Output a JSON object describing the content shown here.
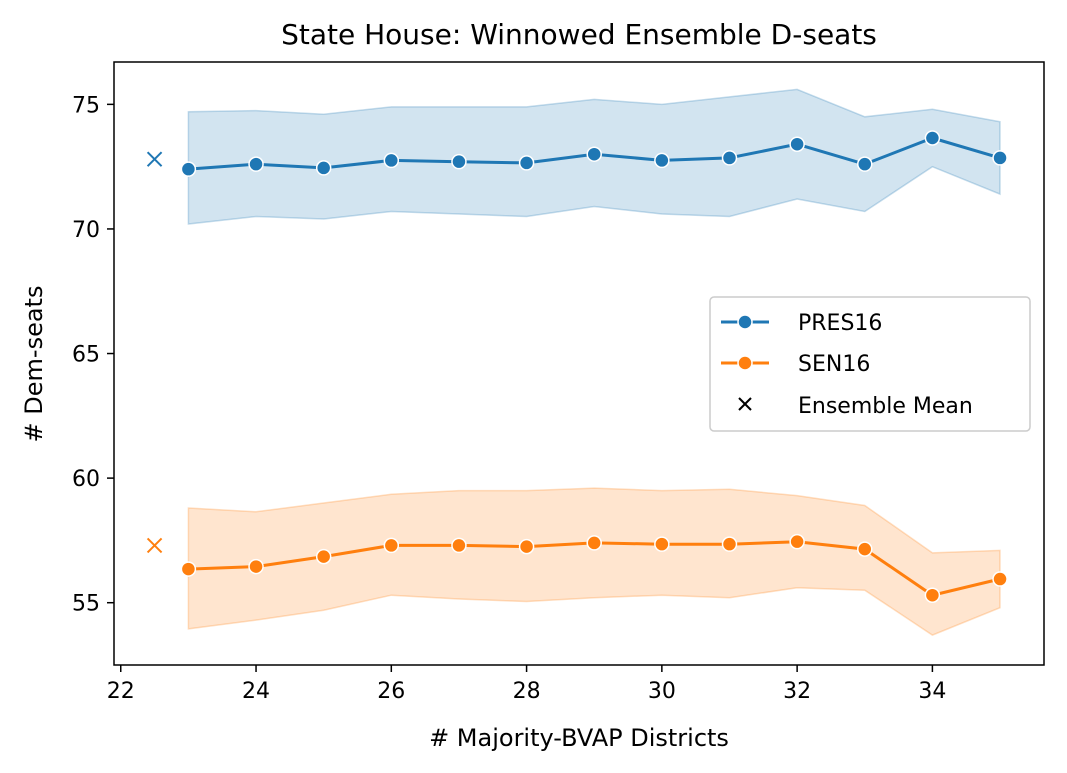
{
  "chart_data": {
    "type": "line",
    "title": "State House: Winnowed Ensemble D-seats",
    "xlabel": "# Majority-BVAP Districts",
    "ylabel": "# Dem-seats",
    "xlim": [
      21.9,
      35.65
    ],
    "ylim": [
      52.5,
      76.7
    ],
    "xticks": [
      22,
      24,
      26,
      28,
      30,
      32,
      34
    ],
    "yticks": [
      55,
      60,
      65,
      70,
      75
    ],
    "grid": false,
    "legend_position": "center-right",
    "x": [
      23,
      24,
      25,
      26,
      27,
      28,
      29,
      30,
      31,
      32,
      33,
      34,
      35
    ],
    "series": [
      {
        "name": "PRES16",
        "color": "#1f77b4",
        "values": [
          72.4,
          72.6,
          72.45,
          72.75,
          72.7,
          72.65,
          73.0,
          72.75,
          72.85,
          73.4,
          72.6,
          73.65,
          72.85
        ],
        "band_upper": [
          74.7,
          74.75,
          74.6,
          74.9,
          74.9,
          74.9,
          75.2,
          75.0,
          75.3,
          75.6,
          74.5,
          74.8,
          74.3
        ],
        "band_lower": [
          70.2,
          70.5,
          70.4,
          70.7,
          70.6,
          70.5,
          70.9,
          70.6,
          70.5,
          71.2,
          70.7,
          72.5,
          71.4
        ],
        "ensemble_mean": {
          "x": 22.5,
          "y": 72.8
        }
      },
      {
        "name": "SEN16",
        "color": "#ff7f0e",
        "values": [
          56.35,
          56.45,
          56.85,
          57.3,
          57.3,
          57.25,
          57.4,
          57.35,
          57.35,
          57.45,
          57.15,
          55.3,
          55.95
        ],
        "band_upper": [
          58.8,
          58.65,
          59.0,
          59.35,
          59.5,
          59.5,
          59.6,
          59.5,
          59.55,
          59.3,
          58.9,
          57.0,
          57.1
        ],
        "band_lower": [
          53.95,
          54.3,
          54.7,
          55.3,
          55.15,
          55.05,
          55.2,
          55.3,
          55.2,
          55.6,
          55.5,
          53.7,
          54.8
        ],
        "ensemble_mean": {
          "x": 22.5,
          "y": 57.3
        }
      }
    ],
    "legend": [
      {
        "label": "PRES16",
        "marker": "circle-line",
        "color": "#1f77b4"
      },
      {
        "label": "SEN16",
        "marker": "circle-line",
        "color": "#ff7f0e"
      },
      {
        "label": "Ensemble Mean",
        "marker": "x",
        "color": "#000000"
      }
    ]
  }
}
